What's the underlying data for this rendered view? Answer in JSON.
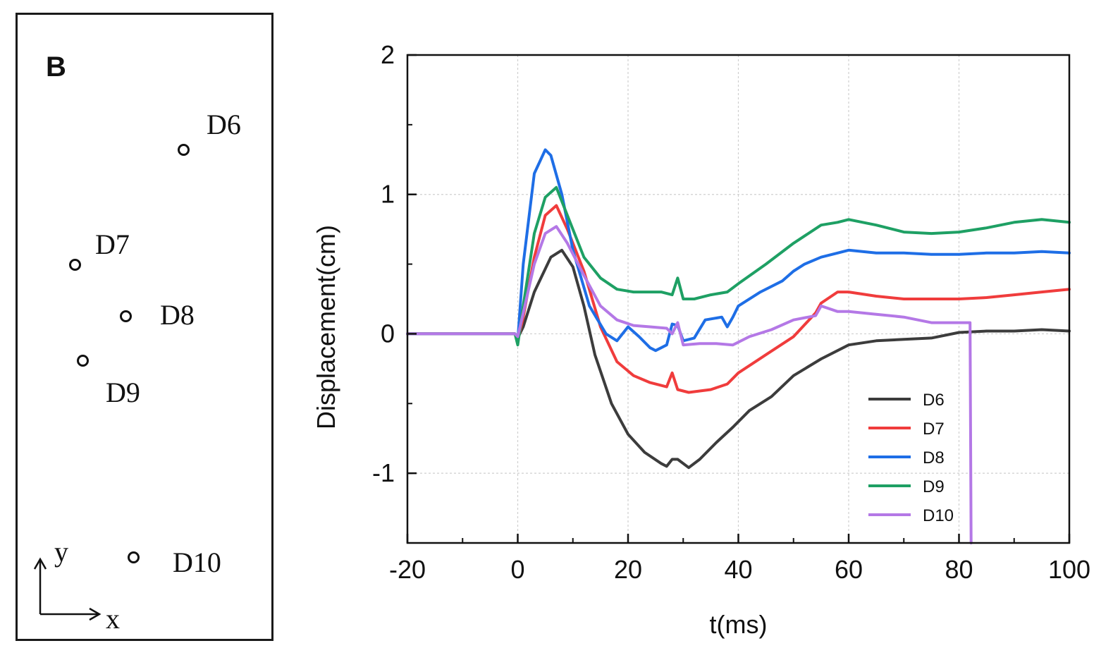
{
  "diagram": {
    "panel_label": "B",
    "sensors": [
      {
        "id": "d6",
        "label": "D6"
      },
      {
        "id": "d7",
        "label": "D7"
      },
      {
        "id": "d8",
        "label": "D8"
      },
      {
        "id": "d9",
        "label": "D9"
      },
      {
        "id": "d10",
        "label": "D10"
      }
    ],
    "axes": {
      "x": "x",
      "y": "y"
    }
  },
  "chart_data": {
    "type": "line",
    "title": "",
    "xlabel": "t(ms)",
    "ylabel": "Displacement(cm)",
    "xlim": [
      -20,
      100
    ],
    "ylim": [
      -1.5,
      2
    ],
    "xticks": [
      -20,
      0,
      20,
      40,
      60,
      80,
      100
    ],
    "yticks": [
      -1,
      0,
      1,
      2
    ],
    "grid": true,
    "legend": "bottom-right",
    "series": [
      {
        "name": "D6",
        "color": "#3c3c3c",
        "x": [
          -20,
          -3,
          -0.5,
          0,
          1,
          3,
          6,
          8,
          10,
          12,
          14,
          17,
          20,
          23,
          26,
          27,
          28,
          29,
          31,
          33,
          36,
          39,
          42,
          46,
          50,
          55,
          60,
          65,
          70,
          75,
          80,
          85,
          90,
          95,
          100
        ],
        "y": [
          0,
          0,
          0,
          -0.03,
          0.05,
          0.3,
          0.55,
          0.6,
          0.48,
          0.2,
          -0.15,
          -0.5,
          -0.72,
          -0.85,
          -0.93,
          -0.95,
          -0.9,
          -0.9,
          -0.96,
          -0.9,
          -0.78,
          -0.67,
          -0.55,
          -0.45,
          -0.3,
          -0.18,
          -0.08,
          -0.05,
          -0.04,
          -0.03,
          0.01,
          0.02,
          0.02,
          0.03,
          0.02
        ]
      },
      {
        "name": "D7",
        "color": "#f03c3c",
        "x": [
          -20,
          -0.5,
          0,
          1,
          3,
          5,
          7,
          9,
          12,
          15,
          18,
          21,
          24,
          26,
          27,
          28,
          29,
          31,
          35,
          38,
          40,
          45,
          50,
          54,
          55,
          58,
          60,
          65,
          70,
          75,
          80,
          85,
          90,
          95,
          100
        ],
        "y": [
          0,
          0,
          -0.05,
          0.12,
          0.55,
          0.85,
          0.92,
          0.75,
          0.45,
          0.05,
          -0.2,
          -0.3,
          -0.35,
          -0.37,
          -0.38,
          -0.28,
          -0.4,
          -0.42,
          -0.4,
          -0.36,
          -0.28,
          -0.15,
          -0.02,
          0.15,
          0.22,
          0.3,
          0.3,
          0.27,
          0.25,
          0.25,
          0.25,
          0.26,
          0.28,
          0.3,
          0.32
        ]
      },
      {
        "name": "D8",
        "color": "#1e6ee6",
        "x": [
          -20,
          -0.5,
          0,
          1,
          3,
          5,
          6,
          8,
          10,
          13,
          16,
          18,
          20,
          22,
          24,
          25,
          26,
          27,
          28,
          29,
          30,
          32,
          34,
          37,
          38,
          39,
          40,
          44,
          48,
          50,
          52,
          55,
          58,
          60,
          65,
          70,
          75,
          80,
          85,
          90,
          95,
          100
        ],
        "y": [
          0,
          0,
          -0.05,
          0.5,
          1.15,
          1.32,
          1.28,
          1.0,
          0.6,
          0.2,
          0.0,
          -0.05,
          0.05,
          -0.02,
          -0.1,
          -0.12,
          -0.1,
          -0.08,
          0.07,
          0.06,
          -0.05,
          -0.03,
          0.1,
          0.12,
          0.05,
          0.12,
          0.2,
          0.3,
          0.38,
          0.45,
          0.5,
          0.55,
          0.58,
          0.6,
          0.58,
          0.58,
          0.57,
          0.57,
          0.58,
          0.58,
          0.59,
          0.58
        ]
      },
      {
        "name": "D9",
        "color": "#1ea064",
        "x": [
          -20,
          -0.5,
          0,
          1,
          3,
          5,
          7,
          9,
          12,
          15,
          18,
          21,
          24,
          26,
          28,
          29,
          30,
          32,
          35,
          38,
          40,
          45,
          50,
          55,
          58,
          60,
          65,
          70,
          75,
          80,
          85,
          90,
          95,
          100
        ],
        "y": [
          0,
          0,
          -0.08,
          0.2,
          0.72,
          0.98,
          1.05,
          0.85,
          0.55,
          0.4,
          0.32,
          0.3,
          0.3,
          0.3,
          0.28,
          0.4,
          0.25,
          0.25,
          0.28,
          0.3,
          0.36,
          0.5,
          0.65,
          0.78,
          0.8,
          0.82,
          0.78,
          0.73,
          0.72,
          0.73,
          0.76,
          0.8,
          0.82,
          0.8
        ]
      },
      {
        "name": "D10",
        "color": "#b478e6",
        "x": [
          -20,
          -0.5,
          0,
          1,
          3,
          5,
          7,
          9,
          12,
          15,
          18,
          21,
          24,
          27,
          28,
          29,
          30,
          33,
          36,
          39,
          42,
          46,
          50,
          54,
          55,
          58,
          60,
          65,
          70,
          75,
          80,
          82,
          82.2
        ],
        "y": [
          0,
          0,
          -0.02,
          0.15,
          0.5,
          0.72,
          0.77,
          0.65,
          0.42,
          0.2,
          0.1,
          0.06,
          0.05,
          0.04,
          0.0,
          0.08,
          -0.08,
          -0.07,
          -0.07,
          -0.08,
          -0.02,
          0.03,
          0.1,
          0.13,
          0.2,
          0.16,
          0.16,
          0.14,
          0.12,
          0.08,
          0.08,
          0.08,
          -1.5
        ]
      }
    ]
  }
}
